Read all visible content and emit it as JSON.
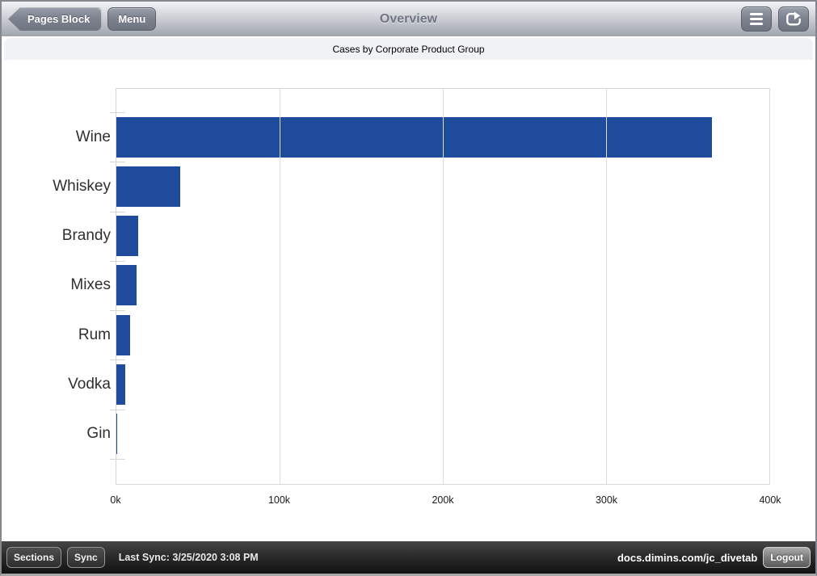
{
  "header": {
    "back_button_label": "Pages Block",
    "menu_button_label": "Menu",
    "title": "Overview",
    "icons": [
      "hamburger-icon",
      "share-icon"
    ]
  },
  "subtitle": "Cases by Corporate Product Group",
  "chart_data": {
    "type": "bar",
    "orientation": "horizontal",
    "title": "Cases by Corporate Product Group",
    "categories": [
      "Wine",
      "Whiskey",
      "Brandy",
      "Mixes",
      "Rum",
      "Vodka",
      "Gin"
    ],
    "values": [
      365000,
      39000,
      13400,
      12400,
      8400,
      5400,
      700
    ],
    "xlim": [
      0,
      400000
    ],
    "x_tick_values": [
      0,
      100000,
      200000,
      300000,
      400000
    ],
    "x_tick_labels": [
      "0k",
      "100k",
      "200k",
      "300k",
      "400k"
    ],
    "xlabel": "",
    "ylabel": "",
    "grid": true,
    "legend": false,
    "bar_color": "#1e4b9b"
  },
  "footer": {
    "sections_button_label": "Sections",
    "sync_button_label": "Sync",
    "last_sync_text": "Last Sync: 3/25/2020 3:08 PM",
    "server_url": "docs.dimins.com/jc_divetab",
    "logout_button_label": "Logout"
  },
  "colors": {
    "bar_blue": "#1e4b9b",
    "topbar_gradient_top": "#f2f3f6",
    "topbar_gradient_bottom": "#9fa4ac",
    "bottombar_dark": "#1c1c1c",
    "strip_background": "#f1f2f5",
    "gridline": "#dcdcdc"
  }
}
